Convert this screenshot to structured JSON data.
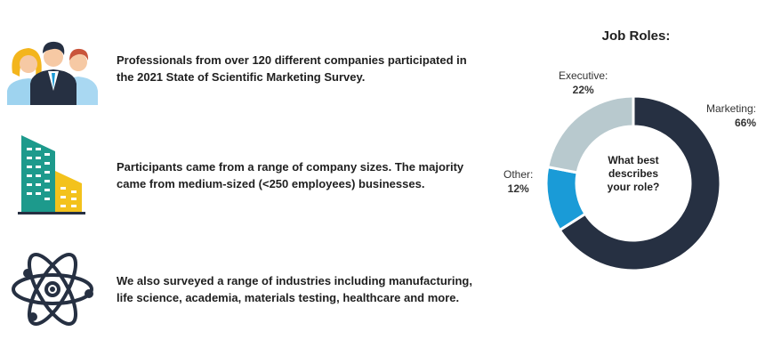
{
  "rows": [
    {
      "icon": "people-icon",
      "text": "Professionals from over 120 different companies participated in the 2021 State of Scientific Marketing Survey."
    },
    {
      "icon": "buildings-icon",
      "text": "Participants came from a range of company sizes. The majority came from medium-sized (<250 employees) businesses."
    },
    {
      "icon": "atom-icon",
      "text": "We also surveyed a range of industries including manufacturing, life science, academia, materials testing, healthcare and more."
    }
  ],
  "chart_data": {
    "type": "pie",
    "title": "Job Roles:",
    "center_text": "What best describes your role?",
    "slices": [
      {
        "name": "Marketing:",
        "value": 66,
        "label": "66%",
        "color": "#263042"
      },
      {
        "name": "Other:",
        "value": 12,
        "label": "12%",
        "color": "#1a9bd7"
      },
      {
        "name": "Executive:",
        "value": 22,
        "label": "22%",
        "color": "#b8c9ce"
      }
    ]
  }
}
